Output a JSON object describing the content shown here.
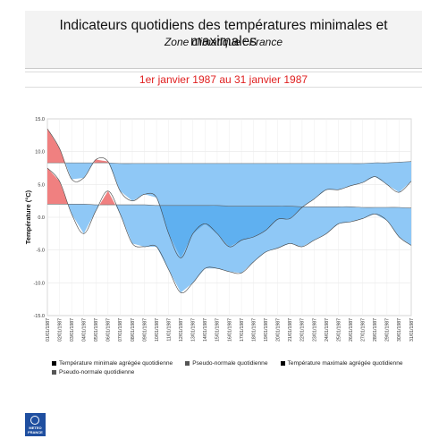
{
  "header": {
    "title": "Indicateurs quotidiens des températures minimales et maximales",
    "subtitle": "Zone climatique : France"
  },
  "period": "1er janvier 1987 au 31 janvier 1987",
  "logo": {
    "text": "METEO\nFRANCE"
  },
  "chart_data": {
    "type": "area",
    "ylabel": "Température (°C)",
    "ylim": [
      -15,
      15
    ],
    "yticks": [
      "15.0",
      "10.0",
      "5.0",
      "0.0",
      "-5.0",
      "-10.0",
      "-15.0"
    ],
    "grid": true,
    "legend_position": "bottom",
    "categories": [
      "01/01/1987",
      "02/01/1987",
      "03/01/1987",
      "04/01/1987",
      "05/01/1987",
      "06/01/1987",
      "07/01/1987",
      "08/01/1987",
      "09/01/1987",
      "10/01/1987",
      "11/01/1987",
      "12/01/1987",
      "13/01/1987",
      "14/01/1987",
      "15/01/1987",
      "16/01/1987",
      "17/01/1987",
      "18/01/1987",
      "19/01/1987",
      "20/01/1987",
      "21/01/1987",
      "22/01/1987",
      "23/01/1987",
      "24/01/1987",
      "25/01/1987",
      "26/01/1987",
      "27/01/1987",
      "28/01/1987",
      "29/01/1987",
      "30/01/1987",
      "31/01/1987"
    ],
    "series": [
      {
        "name": "Température minimale agrégée quotidienne",
        "color": "#000000",
        "values": [
          7.5,
          5.5,
          0.5,
          -2.5,
          1.0,
          4.0,
          0.5,
          -4.0,
          -4.5,
          -4.5,
          -8.0,
          -11.5,
          -10.0,
          -7.8,
          -7.8,
          -8.3,
          -8.5,
          -6.8,
          -5.3,
          -4.7,
          -4.0,
          -4.5,
          -3.5,
          -2.5,
          -1.0,
          -0.7,
          -0.2,
          0.5,
          -0.5,
          -3.0,
          -4.3
        ]
      },
      {
        "name": "Pseudo-normale quotidienne",
        "color": "#555555",
        "values": [
          2.0,
          2.0,
          2.0,
          2.0,
          1.9,
          1.9,
          1.9,
          1.9,
          1.9,
          1.8,
          1.8,
          1.8,
          1.8,
          1.8,
          1.8,
          1.7,
          1.7,
          1.7,
          1.7,
          1.7,
          1.7,
          1.6,
          1.6,
          1.6,
          1.6,
          1.6,
          1.5,
          1.5,
          1.5,
          1.5,
          1.4
        ]
      },
      {
        "name": "Température maximale agrégée quotidienne",
        "color": "#000000",
        "values": [
          13.5,
          10.5,
          5.8,
          6.0,
          8.8,
          8.5,
          4.0,
          2.5,
          3.5,
          3.0,
          -2.5,
          -6.2,
          -2.5,
          -1.0,
          -2.5,
          -4.5,
          -3.5,
          -3.0,
          -2.0,
          -0.3,
          -0.2,
          1.5,
          2.8,
          4.2,
          4.2,
          4.8,
          5.3,
          6.2,
          5.0,
          3.8,
          5.5
        ]
      },
      {
        "name": "Pseudo-normale quotidienne",
        "color": "#555555",
        "values": [
          8.3,
          8.3,
          8.3,
          8.3,
          8.3,
          8.3,
          8.2,
          8.2,
          8.2,
          8.2,
          8.2,
          8.2,
          8.2,
          8.2,
          8.2,
          8.2,
          8.2,
          8.2,
          8.2,
          8.2,
          8.2,
          8.2,
          8.2,
          8.2,
          8.2,
          8.2,
          8.2,
          8.3,
          8.3,
          8.4,
          8.5
        ]
      }
    ],
    "fill_colors": {
      "below_normal": "#8fc8f6",
      "above_normal": "#f08080",
      "strong_below": "#5fb0f0"
    }
  }
}
